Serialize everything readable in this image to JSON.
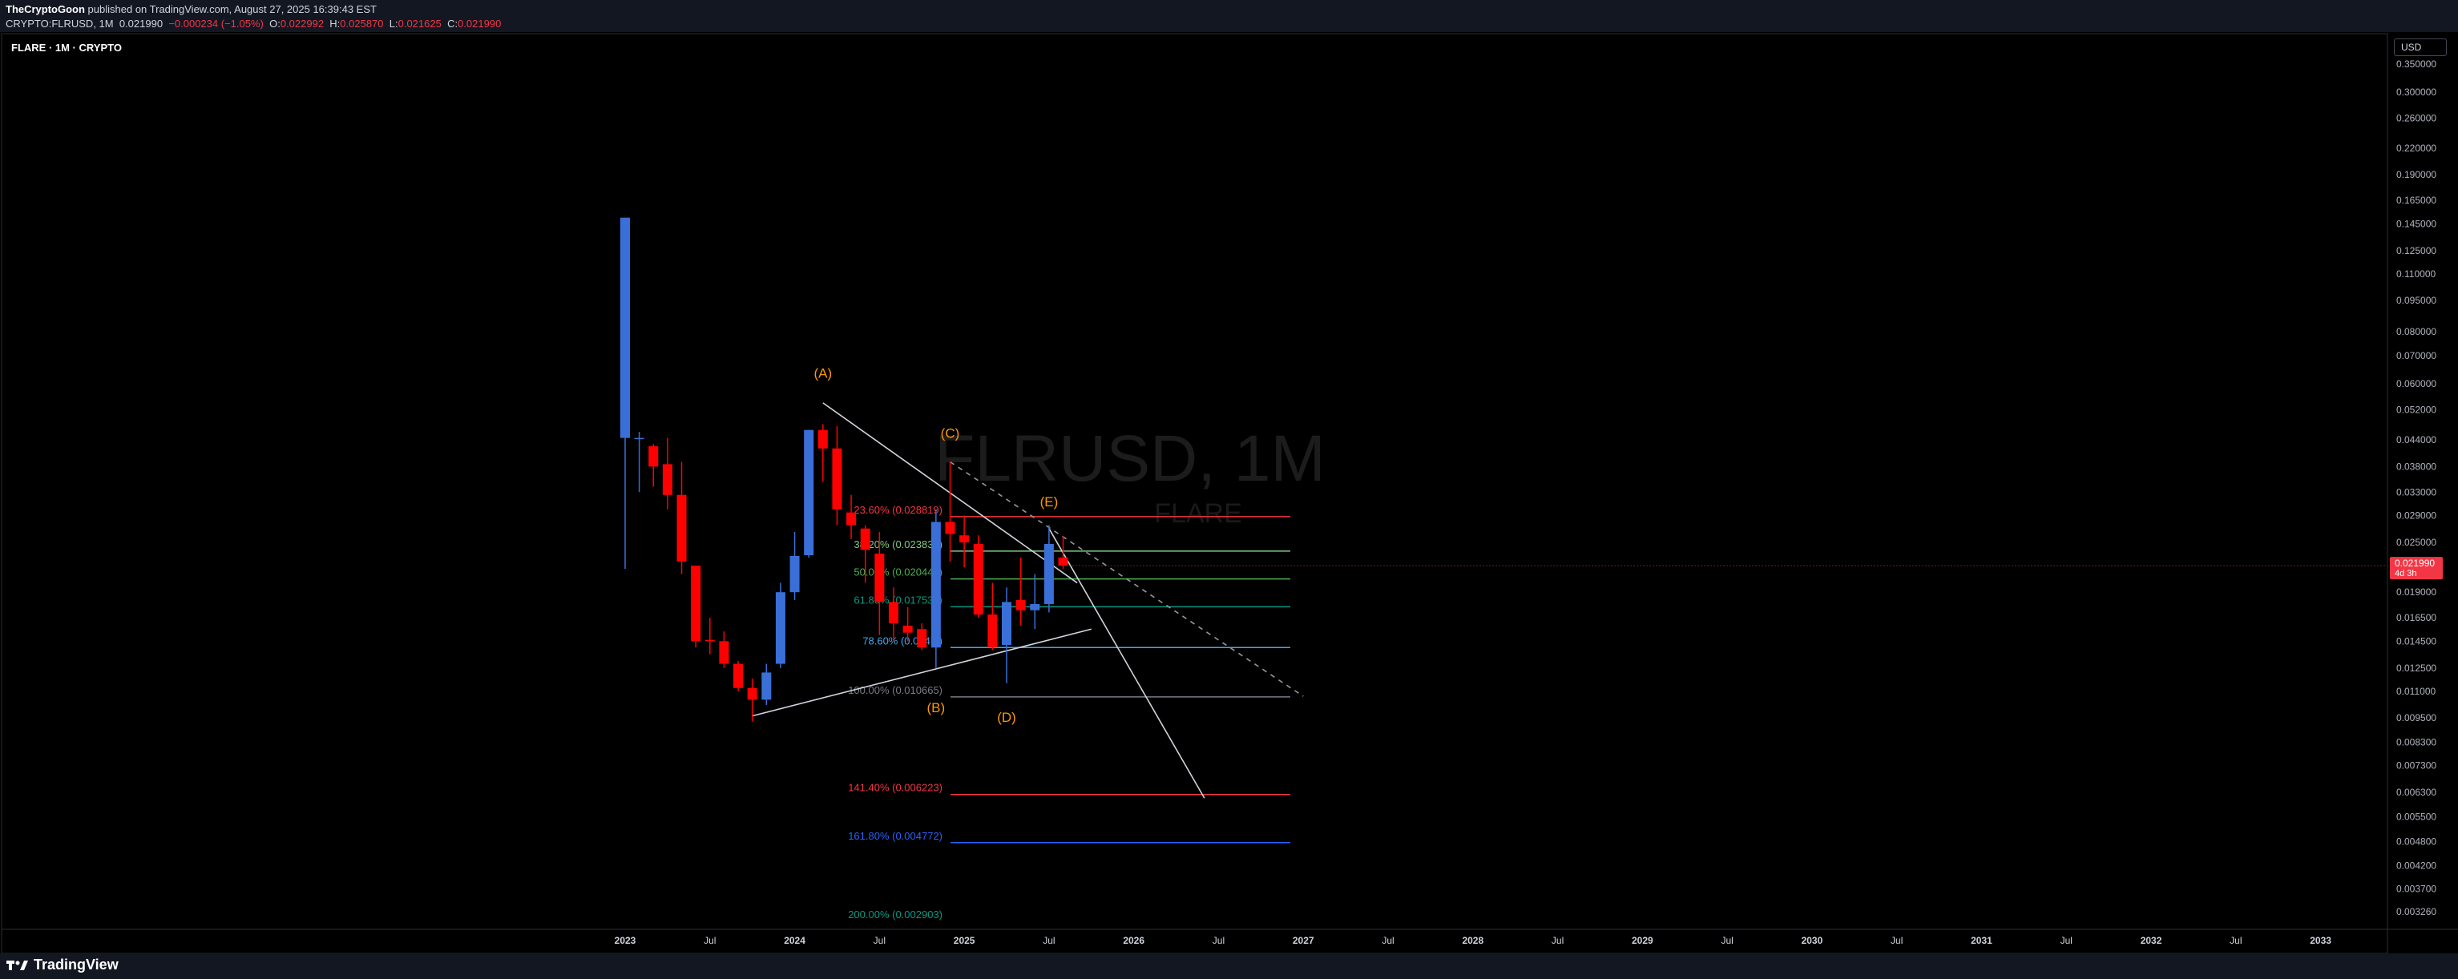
{
  "header": {
    "author": "TheCryptoGoon",
    "published": " published on TradingView.com, August 27, 2025 16:39:43 EST",
    "symbol": "CRYPTO:FLRUSD, 1M",
    "price": "0.021990",
    "change": "−0.000234 (−1.05%)",
    "o_label": "O:",
    "o": "0.022992",
    "h_label": "H:",
    "h": "0.025870",
    "l_label": "L:",
    "l": "0.021625",
    "c_label": "C:",
    "c": "0.021990"
  },
  "chart_label": "FLARE · 1M · CRYPTO",
  "currency_button": "USD",
  "brand": "TradingView",
  "colors": {
    "up": "#3a6fd8",
    "down": "#ff0000",
    "bg": "#000000",
    "panel": "#131722",
    "wave": "#ff9800"
  },
  "chart_data": {
    "type": "candlestick",
    "scale": "log",
    "ylim": [
      0.00326,
      0.35
    ],
    "watermark": {
      "symbol": "FLRUSD, 1M",
      "name": "FLARE"
    },
    "y_ticks": [
      0.35,
      0.3,
      0.26,
      0.22,
      0.19,
      0.165,
      0.145,
      0.125,
      0.11,
      0.095,
      0.08,
      0.07,
      0.06,
      0.052,
      0.044,
      0.038,
      0.033,
      0.029,
      0.025,
      0.019,
      0.0165,
      0.0145,
      0.0125,
      0.011,
      0.0095,
      0.0083,
      0.0073,
      0.0063,
      0.0055,
      0.0048,
      0.0042,
      0.0037,
      0.00326
    ],
    "y_tick_labels": [
      "0.350000",
      "0.300000",
      "0.260000",
      "0.220000",
      "0.190000",
      "0.165000",
      "0.145000",
      "0.125000",
      "0.110000",
      "0.095000",
      "0.080000",
      "0.070000",
      "0.060000",
      "0.052000",
      "0.044000",
      "0.038000",
      "0.033000",
      "0.029000",
      "0.025000",
      "0.019000",
      "0.016500",
      "0.014500",
      "0.012500",
      "0.011000",
      "0.009500",
      "0.008300",
      "0.007300",
      "0.006300",
      "0.005500",
      "0.004800",
      "0.004200",
      "0.003700",
      "0.003260"
    ],
    "x_ticks": [
      "2023",
      "Jul",
      "2024",
      "Jul",
      "2025",
      "Jul",
      "2026",
      "Jul",
      "2027",
      "Jul",
      "2028",
      "Jul",
      "2029",
      "Jul",
      "2030",
      "Jul",
      "2031",
      "Jul",
      "2032",
      "Jul",
      "2033"
    ],
    "x_ticks_bold": [
      true,
      false,
      true,
      false,
      true,
      false,
      true,
      false,
      true,
      false,
      true,
      false,
      true,
      false,
      true,
      false,
      true,
      false,
      true,
      false,
      true
    ],
    "last_price": {
      "value": 0.02199,
      "label": "0.021990",
      "countdown": "4d 3h"
    },
    "candles": [
      {
        "date": "2023-01",
        "o": 0.0445,
        "h": 0.15,
        "l": 0.0216,
        "c": 0.15
      },
      {
        "date": "2023-02",
        "o": 0.0445,
        "h": 0.046,
        "l": 0.033,
        "c": 0.0445
      },
      {
        "date": "2023-03",
        "o": 0.0425,
        "h": 0.043,
        "l": 0.034,
        "c": 0.038
      },
      {
        "date": "2023-04",
        "o": 0.0385,
        "h": 0.0445,
        "l": 0.03,
        "c": 0.0325
      },
      {
        "date": "2023-05",
        "o": 0.0325,
        "h": 0.039,
        "l": 0.021,
        "c": 0.0225
      },
      {
        "date": "2023-06",
        "o": 0.022,
        "h": 0.022,
        "l": 0.014,
        "c": 0.0145
      },
      {
        "date": "2023-07",
        "o": 0.0146,
        "h": 0.0165,
        "l": 0.0135,
        "c": 0.0145
      },
      {
        "date": "2023-08",
        "o": 0.0145,
        "h": 0.0153,
        "l": 0.0125,
        "c": 0.0128
      },
      {
        "date": "2023-09",
        "o": 0.0128,
        "h": 0.013,
        "l": 0.011,
        "c": 0.0112
      },
      {
        "date": "2023-10",
        "o": 0.0112,
        "h": 0.0118,
        "l": 0.0093,
        "c": 0.0105
      },
      {
        "date": "2023-11",
        "o": 0.0105,
        "h": 0.0128,
        "l": 0.0102,
        "c": 0.0122
      },
      {
        "date": "2023-12",
        "o": 0.0128,
        "h": 0.02,
        "l": 0.0125,
        "c": 0.019
      },
      {
        "date": "2024-01",
        "o": 0.019,
        "h": 0.0265,
        "l": 0.0182,
        "c": 0.0232
      },
      {
        "date": "2024-02",
        "o": 0.0233,
        "h": 0.0465,
        "l": 0.023,
        "c": 0.0465
      },
      {
        "date": "2024-03",
        "o": 0.0465,
        "h": 0.048,
        "l": 0.035,
        "c": 0.042
      },
      {
        "date": "2024-04",
        "o": 0.042,
        "h": 0.0475,
        "l": 0.0275,
        "c": 0.03
      },
      {
        "date": "2024-05",
        "o": 0.0295,
        "h": 0.0325,
        "l": 0.0255,
        "c": 0.0275
      },
      {
        "date": "2024-06",
        "o": 0.027,
        "h": 0.0275,
        "l": 0.02,
        "c": 0.024
      },
      {
        "date": "2024-07",
        "o": 0.0235,
        "h": 0.0265,
        "l": 0.015,
        "c": 0.018
      },
      {
        "date": "2024-08",
        "o": 0.018,
        "h": 0.0195,
        "l": 0.0145,
        "c": 0.016
      },
      {
        "date": "2024-09",
        "o": 0.0158,
        "h": 0.0175,
        "l": 0.0145,
        "c": 0.0152
      },
      {
        "date": "2024-10",
        "o": 0.0155,
        "h": 0.016,
        "l": 0.0138,
        "c": 0.014
      },
      {
        "date": "2024-11",
        "o": 0.014,
        "h": 0.03,
        "l": 0.0125,
        "c": 0.028
      },
      {
        "date": "2024-12",
        "o": 0.028,
        "h": 0.039,
        "l": 0.0225,
        "c": 0.0262
      },
      {
        "date": "2025-01",
        "o": 0.026,
        "h": 0.029,
        "l": 0.0218,
        "c": 0.025
      },
      {
        "date": "2025-02",
        "o": 0.0248,
        "h": 0.026,
        "l": 0.0165,
        "c": 0.0168
      },
      {
        "date": "2025-03",
        "o": 0.0168,
        "h": 0.02,
        "l": 0.0138,
        "c": 0.014
      },
      {
        "date": "2025-04",
        "o": 0.0142,
        "h": 0.0195,
        "l": 0.0115,
        "c": 0.018
      },
      {
        "date": "2025-05",
        "o": 0.0182,
        "h": 0.023,
        "l": 0.0158,
        "c": 0.0172
      },
      {
        "date": "2025-06",
        "o": 0.0172,
        "h": 0.021,
        "l": 0.0155,
        "c": 0.0178
      },
      {
        "date": "2025-07",
        "o": 0.0178,
        "h": 0.0275,
        "l": 0.017,
        "c": 0.0248
      },
      {
        "date": "2025-08",
        "o": 0.023,
        "h": 0.0259,
        "l": 0.0216,
        "c": 0.022
      }
    ],
    "fib_levels": [
      {
        "ratio": "23.60%",
        "value": 0.028819,
        "label": "23.60% (0.028819)",
        "color": "#f23645"
      },
      {
        "ratio": "38.20%",
        "value": 0.023831,
        "label": "38.20% (0.023831)",
        "color": "#81c784"
      },
      {
        "ratio": "50.00%",
        "value": 0.02044,
        "label": "50.00% (0.020440)",
        "color": "#4caf50"
      },
      {
        "ratio": "61.80%",
        "value": 0.01753,
        "label": "61.80% (0.017530)",
        "color": "#089981"
      },
      {
        "ratio": "78.60%",
        "value": 0.014,
        "label": "78.60% (0.014...)",
        "color": "#42a5f5"
      },
      {
        "ratio": "100.00%",
        "value": 0.010665,
        "label": "100.00% (0.010665)",
        "color": "#787b86"
      },
      {
        "ratio": "141.40%",
        "value": 0.006223,
        "label": "141.40% (0.006223)",
        "color": "#f23645"
      },
      {
        "ratio": "161.80%",
        "value": 0.004772,
        "label": "161.80% (0.004772)",
        "color": "#2962ff"
      },
      {
        "ratio": "200.00%",
        "value": 0.002903,
        "label": "200.00% (0.002903)",
        "color": "#089981"
      }
    ],
    "wave_labels": [
      {
        "text": "(A)",
        "date": "2024-03",
        "value": 0.062
      },
      {
        "text": "(B)",
        "date": "2024-11",
        "value": 0.0098
      },
      {
        "text": "(C)",
        "date": "2024-12",
        "value": 0.0445
      },
      {
        "text": "(D)",
        "date": "2025-04",
        "value": 0.0093
      },
      {
        "text": "(E)",
        "date": "2025-07",
        "value": 0.0305
      }
    ]
  }
}
